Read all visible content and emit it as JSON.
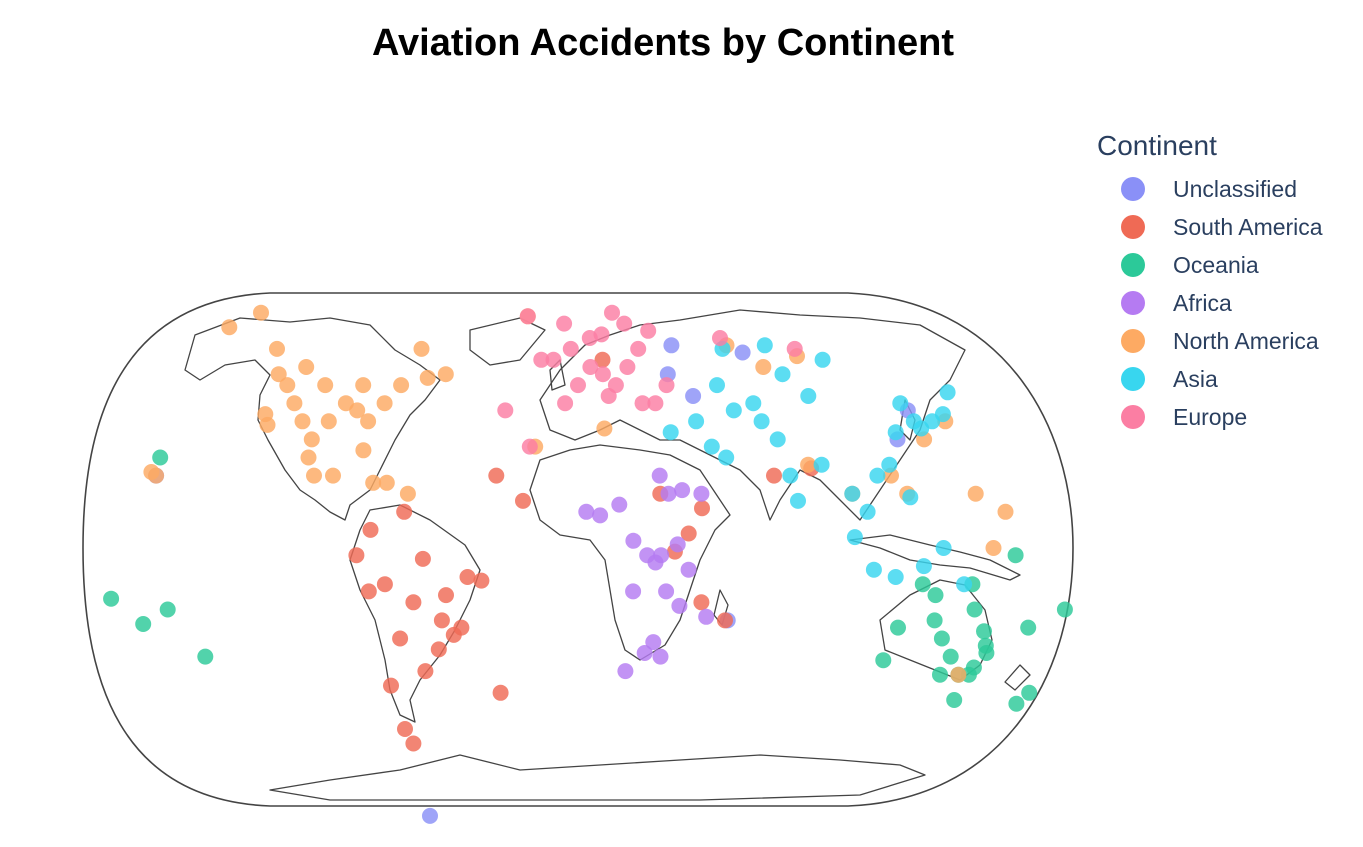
{
  "title": "Aviation Accidents by Continent",
  "legend": {
    "title": "Continent",
    "items": [
      {
        "label": "Unclassified",
        "color": "#8a90f7"
      },
      {
        "label": "South America",
        "color": "#ef6a55"
      },
      {
        "label": "Oceania",
        "color": "#2cc999"
      },
      {
        "label": "Africa",
        "color": "#b57bf2"
      },
      {
        "label": "North America",
        "color": "#fdaa63"
      },
      {
        "label": "Asia",
        "color": "#38d6ef"
      },
      {
        "label": "Europe",
        "color": "#fb7ea3"
      }
    ]
  },
  "map": {
    "projection": "natural earth",
    "series": [
      {
        "name": "Unclassified",
        "color": "#8a90f7",
        "points": [
          [
            -155,
            20
          ],
          [
            -70,
            -74
          ],
          [
            36,
            48
          ],
          [
            39,
            56
          ],
          [
            45,
            42
          ],
          [
            68,
            54
          ],
          [
            120,
            30
          ],
          [
            127,
            38
          ],
          [
            55,
            -20
          ]
        ]
      },
      {
        "name": "South America",
        "color": "#ef6a55",
        "points": [
          [
            -75,
            5
          ],
          [
            -70,
            -10
          ],
          [
            -60,
            -15
          ],
          [
            -50,
            -20
          ],
          [
            -46,
            -24
          ],
          [
            -43,
            -22
          ],
          [
            -66,
            -25
          ],
          [
            -58,
            -34
          ],
          [
            -72,
            -38
          ],
          [
            -70,
            -50
          ],
          [
            -68,
            -54
          ],
          [
            -56,
            -3
          ],
          [
            -40,
            -8
          ],
          [
            -35,
            -9
          ],
          [
            -76,
            -12
          ],
          [
            -80,
            -2
          ],
          [
            -63,
            10
          ],
          [
            -48,
            -13
          ],
          [
            -52,
            -28
          ],
          [
            -30,
            -40
          ],
          [
            10,
            52
          ],
          [
            40,
            4
          ],
          [
            45,
            11
          ],
          [
            72,
            20
          ],
          [
            54,
            -20
          ],
          [
            30,
            15
          ],
          [
            -30,
            20
          ],
          [
            -20,
            13
          ],
          [
            86,
            22
          ],
          [
            35,
            -1
          ],
          [
            45,
            -15
          ]
        ]
      },
      {
        "name": "Oceania",
        "color": "#2cc999",
        "points": [
          [
            -170,
            -14
          ],
          [
            -160,
            -21
          ],
          [
            -150,
            -17
          ],
          [
            -140,
            -30
          ],
          [
            -155,
            25
          ],
          [
            115,
            -31
          ],
          [
            118,
            -22
          ],
          [
            130,
            -13
          ],
          [
            135,
            -25
          ],
          [
            140,
            -30
          ],
          [
            145,
            -35
          ],
          [
            150,
            -33
          ],
          [
            152,
            -27
          ],
          [
            145,
            -17
          ],
          [
            138,
            -35
          ],
          [
            147,
            -42
          ],
          [
            153,
            -29
          ],
          [
            150,
            -23
          ],
          [
            131,
            -20
          ],
          [
            149,
            -35
          ],
          [
            175,
            -40
          ],
          [
            172,
            -43
          ],
          [
            178,
            -17
          ],
          [
            166,
            -22
          ],
          [
            158,
            -2
          ],
          [
            125,
            -10
          ],
          [
            143,
            -10
          ]
        ]
      },
      {
        "name": "Africa",
        "color": "#b57bf2",
        "points": [
          [
            3,
            10
          ],
          [
            8,
            9
          ],
          [
            15,
            12
          ],
          [
            20,
            2
          ],
          [
            25,
            -2
          ],
          [
            28,
            -4
          ],
          [
            30,
            -2
          ],
          [
            32,
            -12
          ],
          [
            28,
            -26
          ],
          [
            18,
            -34
          ],
          [
            25,
            -29
          ],
          [
            31,
            -30
          ],
          [
            37,
            -16
          ],
          [
            47,
            -19
          ],
          [
            40,
            -6
          ],
          [
            36,
            1
          ],
          [
            33,
            15
          ],
          [
            20,
            -12
          ],
          [
            30,
            20
          ],
          [
            38,
            16
          ],
          [
            45,
            15
          ]
        ]
      },
      {
        "name": "North America",
        "color": "#fdaa63",
        "points": [
          [
            -150,
            61
          ],
          [
            -140,
            65
          ],
          [
            -125,
            55
          ],
          [
            -120,
            48
          ],
          [
            -115,
            45
          ],
          [
            -110,
            40
          ],
          [
            -105,
            35
          ],
          [
            -100,
            30
          ],
          [
            -95,
            35
          ],
          [
            -90,
            40
          ],
          [
            -85,
            38
          ],
          [
            -80,
            35
          ],
          [
            -75,
            40
          ],
          [
            -85,
            45
          ],
          [
            -100,
            45
          ],
          [
            -110,
            50
          ],
          [
            -120,
            37
          ],
          [
            -118,
            34
          ],
          [
            -97,
            20
          ],
          [
            -90,
            20
          ],
          [
            -100,
            25
          ],
          [
            -70,
            45
          ],
          [
            -60,
            47
          ],
          [
            -65,
            55
          ],
          [
            -53,
            48
          ],
          [
            -80,
            27
          ],
          [
            -75,
            18
          ],
          [
            -70,
            18
          ],
          [
            -62,
            15
          ],
          [
            -157,
            21
          ],
          [
            -155,
            20
          ],
          [
            -22,
            64
          ],
          [
            -16,
            28
          ],
          [
            10,
            33
          ],
          [
            62,
            56
          ],
          [
            75,
            50
          ],
          [
            90,
            53
          ],
          [
            130,
            30
          ],
          [
            140,
            35
          ],
          [
            145,
            15
          ],
          [
            150,
            0
          ],
          [
            155,
            10
          ],
          [
            120,
            15
          ],
          [
            115,
            20
          ],
          [
            100,
            15
          ],
          [
            85,
            23
          ],
          [
            145,
            -35
          ]
        ]
      },
      {
        "name": "Asia",
        "color": "#38d6ef",
        "points": [
          [
            35,
            32
          ],
          [
            45,
            35
          ],
          [
            50,
            28
          ],
          [
            55,
            25
          ],
          [
            60,
            38
          ],
          [
            70,
            35
          ],
          [
            75,
            30
          ],
          [
            78,
            20
          ],
          [
            80,
            13
          ],
          [
            90,
            23
          ],
          [
            100,
            15
          ],
          [
            105,
            10
          ],
          [
            110,
            20
          ],
          [
            115,
            23
          ],
          [
            120,
            32
          ],
          [
            125,
            40
          ],
          [
            128,
            35
          ],
          [
            130,
            33
          ],
          [
            135,
            35
          ],
          [
            140,
            37
          ],
          [
            145,
            43
          ],
          [
            121,
            14
          ],
          [
            107,
            -6
          ],
          [
            100,
            3
          ],
          [
            115,
            -8
          ],
          [
            125,
            -5
          ],
          [
            132,
            0
          ],
          [
            140,
            -10
          ],
          [
            78,
            56
          ],
          [
            82,
            48
          ],
          [
            60,
            55
          ],
          [
            68,
            40
          ],
          [
            55,
            45
          ],
          [
            90,
            42
          ],
          [
            100,
            52
          ]
        ]
      },
      {
        "name": "Europe",
        "color": "#fb7ea3",
        "points": [
          [
            -10,
            52
          ],
          [
            -5,
            40
          ],
          [
            0,
            45
          ],
          [
            5,
            50
          ],
          [
            10,
            48
          ],
          [
            12,
            42
          ],
          [
            15,
            45
          ],
          [
            20,
            50
          ],
          [
            25,
            55
          ],
          [
            30,
            60
          ],
          [
            20,
            62
          ],
          [
            15,
            65
          ],
          [
            -22,
            64
          ],
          [
            -6,
            62
          ],
          [
            -18,
            28
          ],
          [
            -28,
            38
          ],
          [
            -15,
            52
          ],
          [
            5,
            58
          ],
          [
            30,
            40
          ],
          [
            35,
            45
          ],
          [
            10,
            59
          ],
          [
            25,
            40
          ],
          [
            -3,
            55
          ],
          [
            60,
            58
          ],
          [
            90,
            55
          ]
        ]
      }
    ]
  }
}
